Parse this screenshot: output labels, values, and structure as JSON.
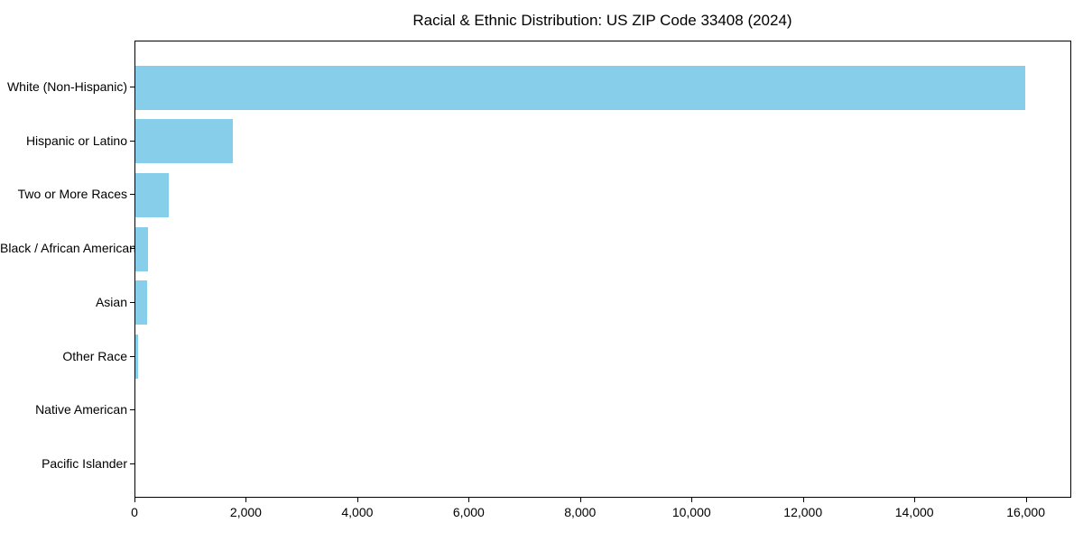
{
  "chart_data": {
    "type": "bar",
    "orientation": "horizontal",
    "title": "Racial & Ethnic Distribution: US ZIP Code 33408 (2024)",
    "categories": [
      "White (Non-Hispanic)",
      "Hispanic or Latino",
      "Two or More Races",
      "Black / African American",
      "Asian",
      "Other Race",
      "Native American",
      "Pacific Islander"
    ],
    "values": [
      15980,
      1750,
      600,
      220,
      205,
      45,
      0,
      0
    ],
    "xlabel": "",
    "ylabel": "",
    "xlim": [
      0,
      16800
    ],
    "xtick_values": [
      0,
      2000,
      4000,
      6000,
      8000,
      10000,
      12000,
      14000,
      16000
    ],
    "xtick_labels": [
      "0",
      "2,000",
      "4,000",
      "6,000",
      "8,000",
      "10,000",
      "12,000",
      "14,000",
      "16,000"
    ],
    "grid": false,
    "legend": "none",
    "colors": {
      "bar": "#87CEEB",
      "spine": "#000000",
      "text": "#000000",
      "background": "#ffffff"
    }
  }
}
